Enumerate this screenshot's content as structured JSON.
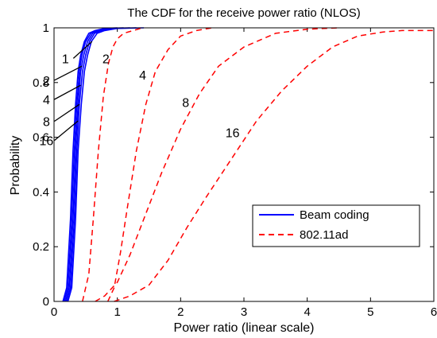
{
  "chart_data": {
    "type": "line",
    "title": "The CDF for the receive power ratio (NLOS)",
    "xlabel": "Power ratio (linear scale)",
    "ylabel": "Probability",
    "xlim": [
      0,
      6
    ],
    "ylim": [
      0,
      1
    ],
    "xticks": [
      "0",
      "1",
      "2",
      "3",
      "4",
      "5",
      "6"
    ],
    "yticks": [
      "0",
      "0.2",
      "0.4",
      "0.6",
      "0.8",
      "1"
    ],
    "grid": false,
    "legend_position": "lower-right",
    "legend": [
      "Beam coding",
      "802.11ad"
    ],
    "colors": {
      "beam_coding": "#0000ff",
      "ieee_80211ad": "#ff0000"
    },
    "series": [
      {
        "group": "Beam coding",
        "label": "1",
        "x": [
          0.14,
          0.2,
          0.26,
          0.3,
          0.34,
          0.38,
          0.42,
          0.48,
          0.55,
          0.65,
          0.8,
          1.0
        ],
        "y": [
          0,
          0.05,
          0.3,
          0.55,
          0.72,
          0.84,
          0.9,
          0.95,
          0.98,
          0.99,
          0.998,
          1
        ]
      },
      {
        "group": "Beam coding",
        "label": "2",
        "x": [
          0.16,
          0.22,
          0.28,
          0.32,
          0.36,
          0.4,
          0.44,
          0.5,
          0.58,
          0.68,
          0.85,
          1.1
        ],
        "y": [
          0,
          0.05,
          0.3,
          0.55,
          0.72,
          0.84,
          0.9,
          0.95,
          0.98,
          0.99,
          0.998,
          1
        ]
      },
      {
        "group": "Beam coding",
        "label": "4",
        "x": [
          0.18,
          0.24,
          0.3,
          0.34,
          0.38,
          0.42,
          0.47,
          0.53,
          0.61,
          0.72,
          0.9,
          1.2
        ],
        "y": [
          0,
          0.05,
          0.3,
          0.55,
          0.72,
          0.84,
          0.9,
          0.95,
          0.98,
          0.99,
          0.998,
          1
        ]
      },
      {
        "group": "Beam coding",
        "label": "8",
        "x": [
          0.2,
          0.26,
          0.32,
          0.36,
          0.4,
          0.45,
          0.5,
          0.56,
          0.64,
          0.75,
          0.95,
          1.3
        ],
        "y": [
          0,
          0.05,
          0.3,
          0.55,
          0.72,
          0.84,
          0.9,
          0.95,
          0.98,
          0.99,
          0.998,
          1
        ]
      },
      {
        "group": "Beam coding",
        "label": "16",
        "x": [
          0.22,
          0.28,
          0.34,
          0.38,
          0.43,
          0.48,
          0.53,
          0.59,
          0.68,
          0.8,
          1.0,
          1.42
        ],
        "y": [
          0,
          0.05,
          0.3,
          0.55,
          0.72,
          0.84,
          0.9,
          0.95,
          0.98,
          0.99,
          0.998,
          1
        ]
      },
      {
        "group": "802.11ad",
        "label": "2",
        "x": [
          0.45,
          0.55,
          0.62,
          0.7,
          0.78,
          0.86,
          0.93,
          1.0,
          1.1,
          1.25,
          1.4
        ],
        "y": [
          0,
          0.1,
          0.3,
          0.55,
          0.75,
          0.87,
          0.93,
          0.96,
          0.98,
          0.99,
          1
        ]
      },
      {
        "group": "802.11ad",
        "label": "4",
        "x": [
          0.85,
          0.95,
          1.05,
          1.15,
          1.3,
          1.45,
          1.6,
          1.8,
          2.0,
          2.25,
          2.5
        ],
        "y": [
          0,
          0.05,
          0.18,
          0.33,
          0.55,
          0.72,
          0.84,
          0.92,
          0.97,
          0.99,
          1
        ]
      },
      {
        "group": "802.11ad",
        "label": "8",
        "x": [
          0.65,
          0.8,
          1.0,
          1.2,
          1.45,
          1.7,
          2.0,
          2.3,
          2.6,
          3.0,
          3.5,
          4.0,
          4.5
        ],
        "y": [
          0,
          0.02,
          0.07,
          0.17,
          0.32,
          0.47,
          0.63,
          0.76,
          0.86,
          0.93,
          0.98,
          0.995,
          1
        ]
      },
      {
        "group": "802.11ad",
        "label": "16",
        "x": [
          0.95,
          1.2,
          1.5,
          1.8,
          2.1,
          2.4,
          2.8,
          3.2,
          3.6,
          4.0,
          4.4,
          4.8,
          5.2,
          5.5,
          6.0
        ],
        "y": [
          0,
          0.02,
          0.06,
          0.15,
          0.27,
          0.38,
          0.52,
          0.66,
          0.77,
          0.86,
          0.93,
          0.97,
          0.985,
          0.99,
          0.99
        ]
      }
    ],
    "annotations": [
      "16",
      "8",
      "4",
      "2",
      "1",
      "2",
      "4",
      "8",
      "16"
    ]
  }
}
